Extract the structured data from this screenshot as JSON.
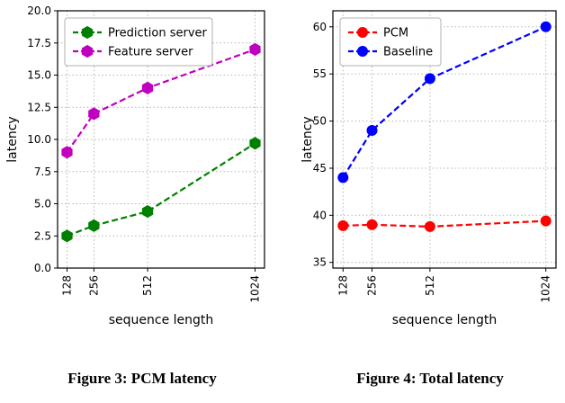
{
  "page": {
    "background": "#ffffff"
  },
  "chart_data": [
    {
      "type": "line",
      "caption": "Figure 3: PCM latency",
      "title": "",
      "xlabel": "sequence length",
      "ylabel": "latency",
      "x": [
        128,
        256,
        512,
        1024
      ],
      "xtick_labels": [
        "128",
        "256",
        "512",
        "1024"
      ],
      "xlim": [
        83,
        1069
      ],
      "ylim": [
        0,
        20
      ],
      "yticks": [
        0,
        2.5,
        5,
        7.5,
        10,
        12.5,
        15,
        17.5,
        20
      ],
      "ytick_labels": [
        "0.0",
        "2.5",
        "5.0",
        "7.5",
        "10.0",
        "12.5",
        "15.0",
        "17.5",
        "20.0"
      ],
      "grid": true,
      "legend_position": "top-left",
      "series": [
        {
          "name": "Prediction server",
          "color": "#008000",
          "marker": "hexagon",
          "values": [
            2.5,
            3.3,
            4.4,
            9.7
          ]
        },
        {
          "name": "Feature server",
          "color": "#bf00bf",
          "marker": "hexagon",
          "values": [
            9.0,
            12.0,
            14.0,
            17.0
          ]
        }
      ]
    },
    {
      "type": "line",
      "caption": "Figure 4: Total latency",
      "title": "",
      "xlabel": "sequence length",
      "ylabel": "latency",
      "x": [
        128,
        256,
        512,
        1024
      ],
      "xtick_labels": [
        "128",
        "256",
        "512",
        "1024"
      ],
      "xlim": [
        83,
        1069
      ],
      "ylim": [
        34.4,
        61.7
      ],
      "yticks": [
        35,
        40,
        45,
        50,
        55,
        60
      ],
      "ytick_labels": [
        "35",
        "40",
        "45",
        "50",
        "55",
        "60"
      ],
      "grid": true,
      "legend_position": "top-left",
      "series": [
        {
          "name": "PCM",
          "color": "#ff0000",
          "marker": "circle",
          "values": [
            38.9,
            39.0,
            38.8,
            39.4
          ]
        },
        {
          "name": "Baseline",
          "color": "#0000ff",
          "marker": "circle",
          "values": [
            44.0,
            49.0,
            54.5,
            60.0
          ]
        }
      ]
    }
  ]
}
